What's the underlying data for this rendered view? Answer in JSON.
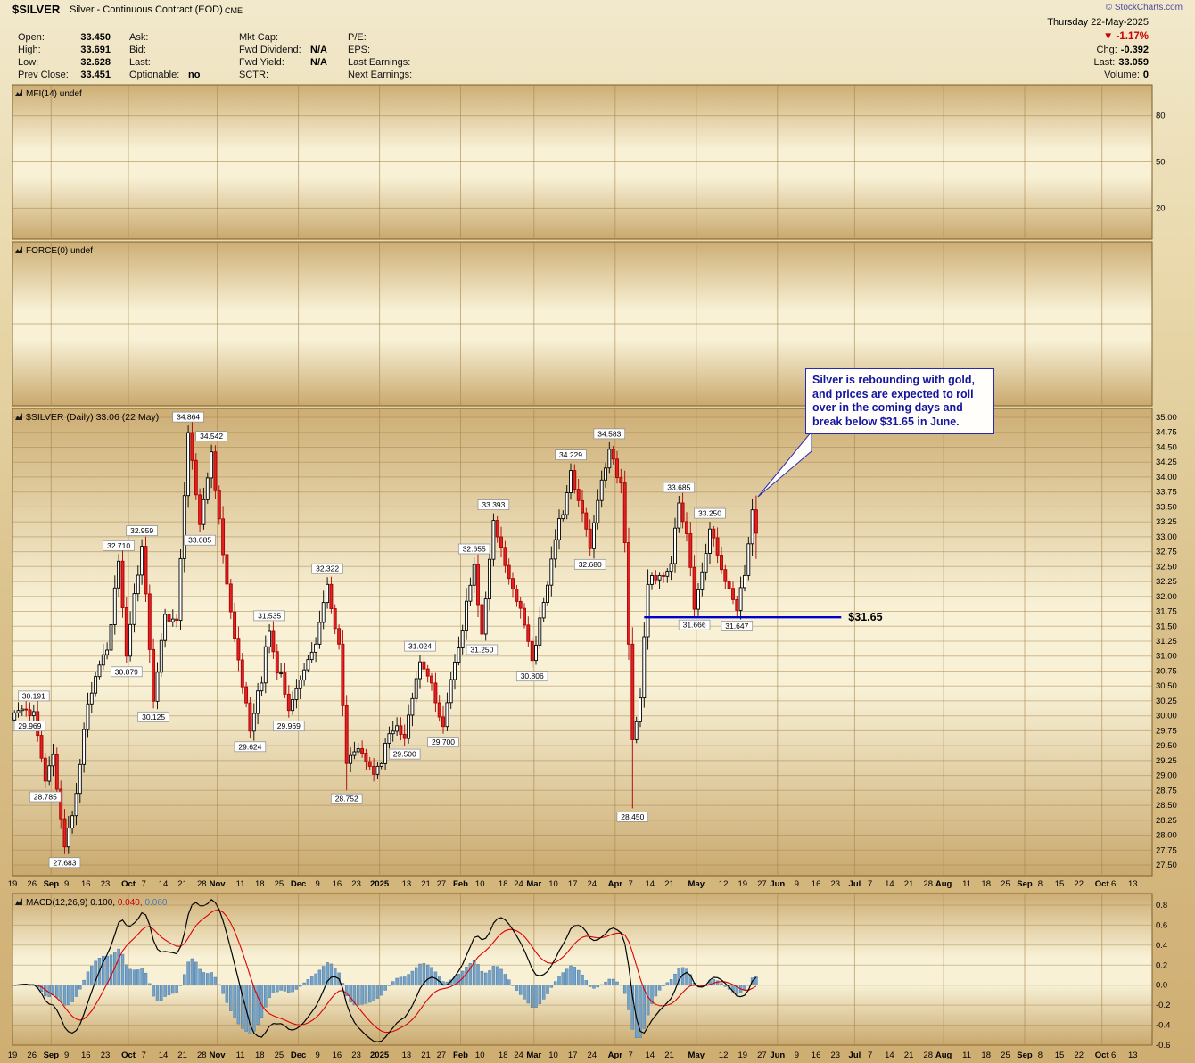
{
  "header": {
    "symbol": "$SILVER",
    "description": "Silver - Continuous Contract (EOD)",
    "exchange": "CME",
    "copyright": "© StockCharts.com",
    "date": "Thursday 22-May-2025",
    "pct_change": "▼ -1.17%"
  },
  "quote": {
    "cols": [
      {
        "rows": [
          {
            "label": "Open:",
            "value": "33.450"
          },
          {
            "label": "High:",
            "value": "33.691"
          },
          {
            "label": "Low:",
            "value": "32.628"
          },
          {
            "label": "Prev Close:",
            "value": "33.451"
          }
        ]
      },
      {
        "rows": [
          {
            "label": "Ask:",
            "value": ""
          },
          {
            "label": "Bid:",
            "value": ""
          },
          {
            "label": "Last:",
            "value": ""
          },
          {
            "label": "Optionable:",
            "value": "no"
          }
        ]
      },
      {
        "rows": [
          {
            "label": "Mkt Cap:",
            "value": ""
          },
          {
            "label": "Fwd Dividend:",
            "value": "N/A"
          },
          {
            "label": "Fwd Yield:",
            "value": "N/A"
          },
          {
            "label": "SCTR:",
            "value": ""
          }
        ]
      },
      {
        "rows": [
          {
            "label": "P/E:",
            "value": ""
          },
          {
            "label": "EPS:",
            "value": ""
          },
          {
            "label": "Last Earnings:",
            "value": ""
          },
          {
            "label": "Next Earnings:",
            "value": ""
          }
        ]
      }
    ],
    "right_rows": [
      {
        "label": "Chg:",
        "value": "-0.392"
      },
      {
        "label": "Last:",
        "value": "33.059"
      },
      {
        "label": "Volume:",
        "value": "0"
      }
    ]
  },
  "panels": {
    "mfi": {
      "title": "MFI(14) undef",
      "ticks": [
        80,
        50,
        20
      ]
    },
    "force": {
      "title": "FORCE(0) undef"
    },
    "main": {
      "title": "$SILVER (Daily) 33.06 (22 May)"
    },
    "macd": {
      "title": "MACD(12,26,9)",
      "values": [
        "0.100,",
        "0.040,",
        "0.060"
      ],
      "ticks": [
        0.8,
        0.6,
        0.4,
        0.2,
        0.0,
        -0.2,
        -0.4,
        -0.6
      ]
    }
  },
  "annotation": {
    "text": "Silver is rebounding with gold, and prices are expected to roll over in the coming days and break below $31.65 in June."
  },
  "chart_data": {
    "type": "candlestick",
    "title": "$SILVER (Daily) 33.06 (22 May)",
    "period": "Aug 2024 - Oct 2025 (daily, prices end 22-May-2025)",
    "y_axis": {
      "min": 27.5,
      "max": 35.0,
      "step": 0.25
    },
    "days": 193,
    "axis_days": 295,
    "seed": 11,
    "last_candle": {
      "o": 33.45,
      "h": 33.691,
      "l": 32.628,
      "c": 33.059
    },
    "pivots": [
      [
        0,
        30.05,
        "c"
      ],
      [
        1,
        29.969,
        "l"
      ],
      [
        3,
        30.1,
        "c"
      ],
      [
        5,
        30.191,
        "h"
      ],
      [
        8,
        28.785,
        "l"
      ],
      [
        10,
        29.35,
        "c"
      ],
      [
        13,
        27.683,
        "l"
      ],
      [
        16,
        28.7,
        "c"
      ],
      [
        19,
        30.2,
        "c"
      ],
      [
        22,
        30.85,
        "c"
      ],
      [
        24,
        31.1,
        "c"
      ],
      [
        27,
        32.71,
        "h"
      ],
      [
        29,
        30.879,
        "l"
      ],
      [
        33,
        32.959,
        "h"
      ],
      [
        36,
        30.125,
        "l"
      ],
      [
        39,
        31.7,
        "c"
      ],
      [
        42,
        31.6,
        "c"
      ],
      [
        45,
        34.864,
        "h"
      ],
      [
        48,
        33.085,
        "l"
      ],
      [
        51,
        34.542,
        "h"
      ],
      [
        54,
        32.7,
        "c"
      ],
      [
        57,
        31.3,
        "c"
      ],
      [
        61,
        29.624,
        "l"
      ],
      [
        66,
        31.535,
        "h"
      ],
      [
        71,
        29.969,
        "l"
      ],
      [
        74,
        30.6,
        "c"
      ],
      [
        78,
        31.2,
        "c"
      ],
      [
        81,
        32.322,
        "h"
      ],
      [
        84,
        31.2,
        "c"
      ],
      [
        86,
        28.752,
        "l",
        29.2
      ],
      [
        89,
        29.45,
        "c"
      ],
      [
        93,
        28.9,
        "l"
      ],
      [
        97,
        29.7,
        "c"
      ],
      [
        101,
        29.5,
        "l"
      ],
      [
        105,
        31.024,
        "h"
      ],
      [
        108,
        30.55,
        "c"
      ],
      [
        111,
        29.7,
        "l"
      ],
      [
        114,
        30.9,
        "c"
      ],
      [
        119,
        32.655,
        "h"
      ],
      [
        121,
        31.25,
        "l"
      ],
      [
        124,
        33.393,
        "h"
      ],
      [
        128,
        32.3,
        "c"
      ],
      [
        131,
        31.8,
        "c"
      ],
      [
        134,
        30.806,
        "l"
      ],
      [
        137,
        31.9,
        "c"
      ],
      [
        140,
        32.95,
        "c"
      ],
      [
        144,
        34.229,
        "h"
      ],
      [
        147,
        33.4,
        "c"
      ],
      [
        149,
        32.68,
        "l"
      ],
      [
        152,
        33.95,
        "c"
      ],
      [
        154,
        34.583,
        "h"
      ],
      [
        157,
        33.9,
        "c"
      ],
      [
        158,
        32.9,
        "c"
      ],
      [
        159,
        31.2,
        "c"
      ],
      [
        160,
        28.45,
        "l",
        29.6
      ],
      [
        162,
        30.3,
        "c"
      ],
      [
        164,
        32.2,
        "c"
      ],
      [
        167,
        32.35,
        "c"
      ],
      [
        170,
        32.55,
        "c"
      ],
      [
        172,
        33.685,
        "h"
      ],
      [
        174,
        33.05,
        "c"
      ],
      [
        176,
        31.666,
        "l"
      ],
      [
        180,
        33.25,
        "h"
      ],
      [
        183,
        32.45,
        "c"
      ],
      [
        187,
        31.647,
        "l"
      ],
      [
        189,
        32.35,
        "c"
      ],
      [
        191,
        33.451,
        "c"
      ],
      [
        192,
        33.059,
        "c"
      ]
    ],
    "price_flags": [
      [
        1,
        "29.969",
        "b"
      ],
      [
        5,
        "30.191",
        "a"
      ],
      [
        8,
        "28.785",
        "b"
      ],
      [
        13,
        "27.683",
        "b"
      ],
      [
        27,
        "32.710",
        "a"
      ],
      [
        29,
        "30.879",
        "b"
      ],
      [
        33,
        "32.959",
        "a"
      ],
      [
        36,
        "30.125",
        "b"
      ],
      [
        45,
        "34.864",
        "a"
      ],
      [
        48,
        "33.085",
        "b"
      ],
      [
        51,
        "34.542",
        "a"
      ],
      [
        61,
        "29.624",
        "b"
      ],
      [
        66,
        "31.535",
        "a"
      ],
      [
        71,
        "29.969",
        "b"
      ],
      [
        81,
        "32.322",
        "a"
      ],
      [
        86,
        "28.752",
        "b"
      ],
      [
        101,
        "29.500",
        "b"
      ],
      [
        105,
        "31.024",
        "a"
      ],
      [
        111,
        "29.700",
        "b"
      ],
      [
        119,
        "32.655",
        "a"
      ],
      [
        121,
        "31.250",
        "b"
      ],
      [
        124,
        "33.393",
        "a"
      ],
      [
        134,
        "30.806",
        "b"
      ],
      [
        144,
        "34.229",
        "a"
      ],
      [
        149,
        "32.680",
        "b"
      ],
      [
        154,
        "34.583",
        "a"
      ],
      [
        160,
        "28.450",
        "b"
      ],
      [
        172,
        "33.685",
        "a"
      ],
      [
        176,
        "31.666",
        "b"
      ],
      [
        180,
        "33.250",
        "a"
      ],
      [
        187,
        "31.647",
        "b"
      ]
    ],
    "support_line": {
      "price": 31.65,
      "label": "$31.65",
      "d1": 163,
      "d2": 214
    },
    "x_ticks": [
      [
        "19",
        0
      ],
      [
        "26",
        5
      ],
      [
        "Sep",
        10,
        1
      ],
      [
        "9",
        14
      ],
      [
        "16",
        19
      ],
      [
        "23",
        24
      ],
      [
        "Oct",
        30,
        1
      ],
      [
        "7",
        34
      ],
      [
        "14",
        39
      ],
      [
        "21",
        44
      ],
      [
        "28",
        49
      ],
      [
        "Nov",
        53,
        1
      ],
      [
        "11",
        59
      ],
      [
        "18",
        64
      ],
      [
        "25",
        69
      ],
      [
        "Dec",
        74,
        1
      ],
      [
        "9",
        79
      ],
      [
        "16",
        84
      ],
      [
        "23",
        89
      ],
      [
        "2025",
        95,
        1
      ],
      [
        "13",
        102
      ],
      [
        "21",
        107
      ],
      [
        "27",
        111
      ],
      [
        "Feb",
        116,
        1
      ],
      [
        "10",
        121
      ],
      [
        "18",
        127
      ],
      [
        "24",
        131
      ],
      [
        "Mar",
        135,
        1
      ],
      [
        "10",
        140
      ],
      [
        "17",
        145
      ],
      [
        "24",
        150
      ],
      [
        "Apr",
        156,
        1
      ],
      [
        "7",
        160
      ],
      [
        "14",
        165
      ],
      [
        "21",
        170
      ],
      [
        "May",
        177,
        1
      ],
      [
        "12",
        184
      ],
      [
        "19",
        189
      ],
      [
        "27",
        194
      ],
      [
        "Jun",
        198,
        1
      ],
      [
        "9",
        203
      ],
      [
        "16",
        208
      ],
      [
        "23",
        213
      ],
      [
        "Jul",
        218,
        1
      ],
      [
        "7",
        222
      ],
      [
        "14",
        227
      ],
      [
        "21",
        232
      ],
      [
        "28",
        237
      ],
      [
        "Aug",
        241,
        1
      ],
      [
        "11",
        247
      ],
      [
        "18",
        252
      ],
      [
        "25",
        257
      ],
      [
        "Sep",
        262,
        1
      ],
      [
        "8",
        266
      ],
      [
        "15",
        271
      ],
      [
        "22",
        276
      ],
      [
        "Oct",
        282,
        1
      ],
      [
        "6",
        285
      ],
      [
        "13",
        290
      ]
    ],
    "macd": {
      "params": "12,26,9",
      "axis_ticks": [
        0.8,
        0.6,
        0.4,
        0.2,
        0.0,
        -0.2,
        -0.4,
        -0.6
      ]
    }
  },
  "colors": {
    "up_fill": "#ffffff",
    "down_fill": "#e02222",
    "down_stroke": "#aa0000",
    "histogram": "#74a3c9",
    "histogram_border": "#4a7aa8",
    "macd_line": "#000000",
    "signal_line": "#dd0000",
    "support": "#0000cc",
    "grid": "#a8854e",
    "panel_border": "#7d5f2b",
    "panel_top": "#cdae74",
    "panel_mid": "#f8f1d6",
    "panel_bottom": "#c9a96e",
    "annotation_border": "#2a2ab0",
    "annotation_text": "#1414a0",
    "negative": "#cc0000"
  }
}
